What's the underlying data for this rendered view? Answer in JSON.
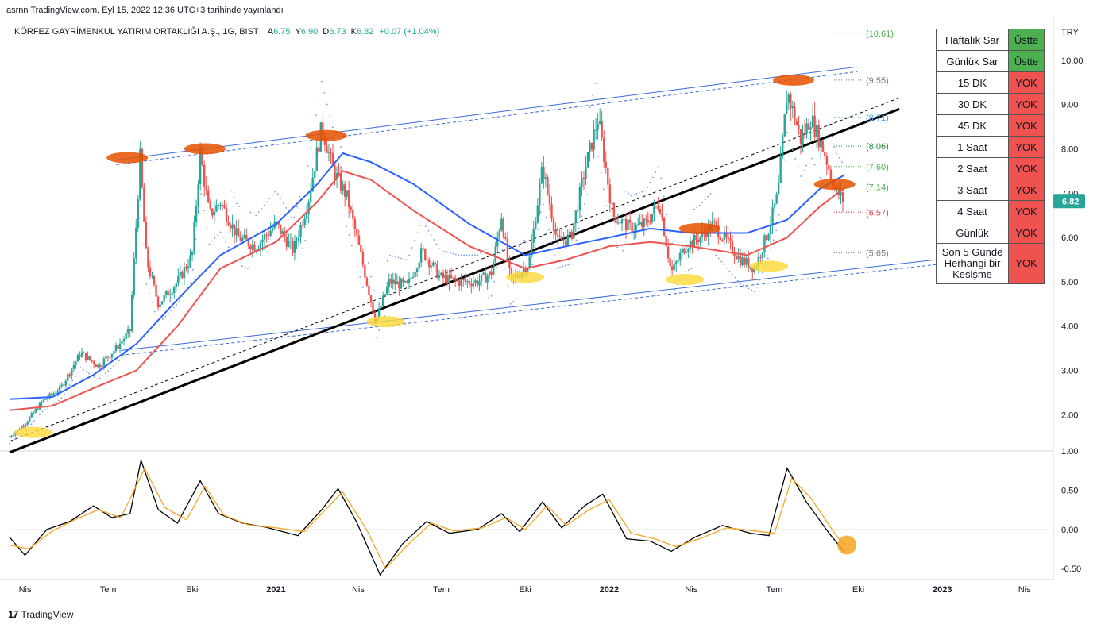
{
  "header": {
    "published": "asrnn TradingView.com, Eyl 15, 2022 12:36 UTC+3 tarihinde yayınlandı",
    "symbol": "KÖRFEZ GAYRİMENKUL YATIRIM ORTAKLIĞI A.Ş., 1G, BIST",
    "ohlc": [
      {
        "label": "A",
        "value": "6.75"
      },
      {
        "label": "Y",
        "value": "6.90"
      },
      {
        "label": "D",
        "value": "6.73"
      },
      {
        "label": "K",
        "value": "6.82"
      }
    ],
    "change": "+0.07 (+1.04%)"
  },
  "footer": {
    "brand": "TradingView"
  },
  "signal_table": [
    {
      "label": "Haftalık Sar",
      "status": "Üstte",
      "positive": true
    },
    {
      "label": "Günlük Sar",
      "status": "Üstte",
      "positive": true
    },
    {
      "label": "15 DK",
      "status": "YOK",
      "positive": false
    },
    {
      "label": "30 DK",
      "status": "YOK",
      "positive": false
    },
    {
      "label": "45 DK",
      "status": "YOK",
      "positive": false
    },
    {
      "label": "1 Saat",
      "status": "YOK",
      "positive": false
    },
    {
      "label": "2 Saat",
      "status": "YOK",
      "positive": false
    },
    {
      "label": "3 Saat",
      "status": "YOK",
      "positive": false
    },
    {
      "label": "4 Saat",
      "status": "YOK",
      "positive": false
    },
    {
      "label": "Günlük",
      "status": "YOK",
      "positive": false
    },
    {
      "label": "Son 5 Günde Herhangi bir Kesişme",
      "status": "YOK",
      "positive": false
    }
  ],
  "chart_data": [
    {
      "type": "candlestick",
      "currency": "TRY",
      "ylim": [
        1.2,
        11.0
      ],
      "y_ticks": [
        "10.00",
        "9.00",
        "8.00",
        "7.00",
        "6.00",
        "5.00",
        "4.00",
        "3.00",
        "2.00"
      ],
      "x_ticks": [
        "Nis",
        "Tem",
        "Eki",
        "2021",
        "Nis",
        "Tem",
        "Eki",
        "2022",
        "Nis",
        "Tem",
        "Eki",
        "2023",
        "Nis"
      ],
      "last_price": "6.82",
      "price_path": [
        [
          "2020-03-15",
          1.5
        ],
        [
          "2020-04-01",
          1.8
        ],
        [
          "2020-04-20",
          2.3
        ],
        [
          "2020-05-10",
          2.6
        ],
        [
          "2020-06-01",
          3.4
        ],
        [
          "2020-06-20",
          3.1
        ],
        [
          "2020-07-10",
          3.5
        ],
        [
          "2020-07-25",
          3.9
        ],
        [
          "2020-08-05",
          7.8
        ],
        [
          "2020-08-12",
          5.5
        ],
        [
          "2020-08-25",
          4.5
        ],
        [
          "2020-09-15",
          5.0
        ],
        [
          "2020-10-01",
          5.6
        ],
        [
          "2020-10-10",
          7.9
        ],
        [
          "2020-10-20",
          6.5
        ],
        [
          "2020-11-01",
          6.8
        ],
        [
          "2020-11-20",
          6.0
        ],
        [
          "2020-12-10",
          5.8
        ],
        [
          "2021-01-01",
          6.3
        ],
        [
          "2021-01-20",
          5.7
        ],
        [
          "2021-02-05",
          6.8
        ],
        [
          "2021-02-20",
          8.5
        ],
        [
          "2021-03-05",
          7.5
        ],
        [
          "2021-03-20",
          6.9
        ],
        [
          "2021-04-05",
          5.5
        ],
        [
          "2021-04-20",
          4.1
        ],
        [
          "2021-05-05",
          5.0
        ],
        [
          "2021-05-25",
          4.9
        ],
        [
          "2021-06-10",
          5.7
        ],
        [
          "2021-06-30",
          5.1
        ],
        [
          "2021-07-20",
          5.0
        ],
        [
          "2021-08-10",
          5.0
        ],
        [
          "2021-08-25",
          5.2
        ],
        [
          "2021-09-05",
          6.5
        ],
        [
          "2021-09-15",
          5.0
        ],
        [
          "2021-10-05",
          5.4
        ],
        [
          "2021-10-20",
          7.6
        ],
        [
          "2021-11-05",
          5.9
        ],
        [
          "2021-11-20",
          6.0
        ],
        [
          "2021-12-05",
          7.5
        ],
        [
          "2021-12-20",
          8.7
        ],
        [
          "2022-01-05",
          6.5
        ],
        [
          "2022-01-25",
          6.2
        ],
        [
          "2022-02-10",
          6.3
        ],
        [
          "2022-02-25",
          6.8
        ],
        [
          "2022-03-10",
          5.2
        ],
        [
          "2022-03-25",
          5.8
        ],
        [
          "2022-04-10",
          6.0
        ],
        [
          "2022-04-25",
          6.3
        ],
        [
          "2022-05-10",
          5.9
        ],
        [
          "2022-05-25",
          5.5
        ],
        [
          "2022-06-10",
          5.3
        ],
        [
          "2022-06-25",
          6.2
        ],
        [
          "2022-07-05",
          7.0
        ],
        [
          "2022-07-15",
          9.3
        ],
        [
          "2022-07-30",
          8.2
        ],
        [
          "2022-08-10",
          8.7
        ],
        [
          "2022-08-25",
          7.9
        ],
        [
          "2022-09-05",
          7.1
        ],
        [
          "2022-09-15",
          6.82
        ]
      ],
      "overlays": {
        "blue_ma": [
          [
            "2020-03-15",
            2.35
          ],
          [
            "2020-05-01",
            2.4
          ],
          [
            "2020-06-15",
            2.9
          ],
          [
            "2020-08-01",
            3.6
          ],
          [
            "2020-09-15",
            4.6
          ],
          [
            "2020-11-01",
            5.6
          ],
          [
            "2021-01-01",
            6.3
          ],
          [
            "2021-02-15",
            7.2
          ],
          [
            "2021-03-15",
            7.9
          ],
          [
            "2021-04-15",
            7.7
          ],
          [
            "2021-06-01",
            7.2
          ],
          [
            "2021-08-01",
            6.3
          ],
          [
            "2021-10-01",
            5.6
          ],
          [
            "2021-11-15",
            5.8
          ],
          [
            "2022-01-01",
            6.0
          ],
          [
            "2022-02-15",
            6.2
          ],
          [
            "2022-04-01",
            6.1
          ],
          [
            "2022-06-01",
            6.1
          ],
          [
            "2022-07-15",
            6.4
          ],
          [
            "2022-08-20",
            7.1
          ],
          [
            "2022-09-15",
            7.4
          ]
        ],
        "red_ma": [
          [
            "2020-03-15",
            2.1
          ],
          [
            "2020-05-01",
            2.2
          ],
          [
            "2020-06-15",
            2.6
          ],
          [
            "2020-08-01",
            3.0
          ],
          [
            "2020-09-15",
            4.0
          ],
          [
            "2020-11-01",
            5.3
          ],
          [
            "2021-01-01",
            5.9
          ],
          [
            "2021-02-15",
            6.8
          ],
          [
            "2021-03-15",
            7.5
          ],
          [
            "2021-04-15",
            7.3
          ],
          [
            "2021-06-01",
            6.6
          ],
          [
            "2021-08-01",
            5.8
          ],
          [
            "2021-10-01",
            5.3
          ],
          [
            "2021-11-15",
            5.5
          ],
          [
            "2022-01-01",
            5.8
          ],
          [
            "2022-02-15",
            5.9
          ],
          [
            "2022-04-01",
            5.8
          ],
          [
            "2022-06-01",
            5.6
          ],
          [
            "2022-07-15",
            6.0
          ],
          [
            "2022-08-20",
            6.7
          ],
          [
            "2022-09-15",
            7.1
          ]
        ]
      },
      "trendlines": [
        {
          "name": "channel_top",
          "from": [
            "2020-07-10",
            7.75
          ],
          "to": [
            "2022-09-30",
            9.85
          ]
        },
        {
          "name": "channel_bottom",
          "from": [
            "2020-07-15",
            3.45
          ],
          "to": [
            "2023-04-15",
            5.75
          ]
        },
        {
          "name": "black_trend",
          "from": [
            "2020-03-15",
            1.15
          ],
          "to": [
            "2022-11-15",
            8.9
          ]
        }
      ],
      "levels": [
        "10.61",
        "9.55",
        "8.71",
        "8.06",
        "7.60",
        "7.14",
        "6.57",
        "5.65"
      ],
      "level_colors": [
        "#4caf50",
        "#787b86",
        "#42a5f5",
        "#1b8a3a",
        "#4caf50",
        "#4caf50",
        "#f23645",
        "#787b86"
      ]
    },
    {
      "type": "line",
      "ylim": [
        -0.62,
        0.98
      ],
      "y_ticks": [
        "1.00",
        "0.50",
        "0.00",
        "-0.50"
      ],
      "series": [
        {
          "color": "#000000",
          "points": [
            [
              "2020-03-15",
              -0.1
            ],
            [
              "2020-04-01",
              -0.33
            ],
            [
              "2020-04-25",
              0.0
            ],
            [
              "2020-05-20",
              0.1
            ],
            [
              "2020-06-15",
              0.3
            ],
            [
              "2020-07-05",
              0.15
            ],
            [
              "2020-07-25",
              0.2
            ],
            [
              "2020-08-06",
              0.88
            ],
            [
              "2020-08-25",
              0.25
            ],
            [
              "2020-09-15",
              0.08
            ],
            [
              "2020-10-10",
              0.62
            ],
            [
              "2020-10-30",
              0.2
            ],
            [
              "2020-11-25",
              0.08
            ],
            [
              "2020-12-20",
              0.03
            ],
            [
              "2021-01-25",
              -0.08
            ],
            [
              "2021-02-20",
              0.25
            ],
            [
              "2021-03-10",
              0.52
            ],
            [
              "2021-03-30",
              0.1
            ],
            [
              "2021-04-25",
              -0.58
            ],
            [
              "2021-05-20",
              -0.18
            ],
            [
              "2021-06-15",
              0.1
            ],
            [
              "2021-07-10",
              -0.05
            ],
            [
              "2021-08-10",
              0.0
            ],
            [
              "2021-09-05",
              0.2
            ],
            [
              "2021-09-25",
              -0.03
            ],
            [
              "2021-10-20",
              0.35
            ],
            [
              "2021-11-10",
              0.02
            ],
            [
              "2021-12-05",
              0.3
            ],
            [
              "2021-12-25",
              0.45
            ],
            [
              "2022-01-20",
              -0.12
            ],
            [
              "2022-02-15",
              -0.15
            ],
            [
              "2022-03-10",
              -0.28
            ],
            [
              "2022-04-05",
              -0.1
            ],
            [
              "2022-05-05",
              0.05
            ],
            [
              "2022-06-05",
              -0.05
            ],
            [
              "2022-06-25",
              -0.08
            ],
            [
              "2022-07-15",
              0.78
            ],
            [
              "2022-08-05",
              0.35
            ],
            [
              "2022-08-30",
              -0.05
            ],
            [
              "2022-09-15",
              -0.28
            ]
          ]
        },
        {
          "color": "#f5a623",
          "points": [
            [
              "2020-03-15",
              -0.2
            ],
            [
              "2020-04-05",
              -0.25
            ],
            [
              "2020-05-01",
              -0.02
            ],
            [
              "2020-05-25",
              0.12
            ],
            [
              "2020-06-20",
              0.25
            ],
            [
              "2020-07-15",
              0.15
            ],
            [
              "2020-08-10",
              0.78
            ],
            [
              "2020-09-01",
              0.28
            ],
            [
              "2020-09-25",
              0.12
            ],
            [
              "2020-10-15",
              0.55
            ],
            [
              "2020-11-05",
              0.18
            ],
            [
              "2020-12-01",
              0.06
            ],
            [
              "2021-01-01",
              0.02
            ],
            [
              "2021-02-01",
              -0.03
            ],
            [
              "2021-03-15",
              0.48
            ],
            [
              "2021-04-10",
              0.0
            ],
            [
              "2021-05-01",
              -0.5
            ],
            [
              "2021-05-25",
              -0.2
            ],
            [
              "2021-06-20",
              0.08
            ],
            [
              "2021-07-15",
              -0.02
            ],
            [
              "2021-08-15",
              0.02
            ],
            [
              "2021-09-10",
              0.15
            ],
            [
              "2021-10-01",
              0.0
            ],
            [
              "2021-10-25",
              0.3
            ],
            [
              "2021-11-15",
              0.05
            ],
            [
              "2021-12-10",
              0.25
            ],
            [
              "2022-01-01",
              0.38
            ],
            [
              "2022-01-25",
              -0.05
            ],
            [
              "2022-02-20",
              -0.12
            ],
            [
              "2022-03-15",
              -0.22
            ],
            [
              "2022-04-10",
              -0.12
            ],
            [
              "2022-05-10",
              0.02
            ],
            [
              "2022-06-10",
              -0.02
            ],
            [
              "2022-07-01",
              -0.05
            ],
            [
              "2022-07-20",
              0.65
            ],
            [
              "2022-08-10",
              0.4
            ],
            [
              "2022-09-05",
              -0.05
            ],
            [
              "2022-09-15",
              -0.2
            ]
          ]
        }
      ],
      "marker": [
        "2022-09-15",
        -0.2
      ]
    }
  ]
}
